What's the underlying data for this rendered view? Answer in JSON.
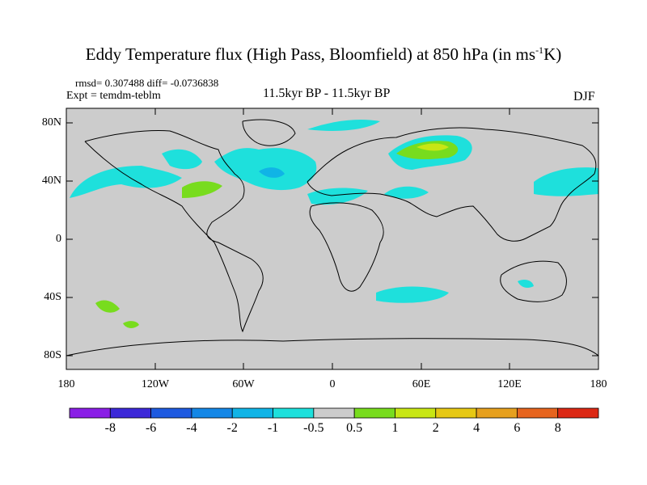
{
  "title": {
    "main": "Eddy Temperature flux (High Pass, Bloomfield) at 850 hPa (in ms",
    "superscript": "-1",
    "end": "K)"
  },
  "stats": "rmsd= 0.307488 diff= -0.0736838",
  "experiment": "Expt = temdm-teblm",
  "period": "11.5kyr BP - 11.5kyr BP",
  "season": "DJF",
  "axes": {
    "lat_labels": [
      "80N",
      "40N",
      "0",
      "40S",
      "80S"
    ],
    "lat_values": [
      80,
      40,
      0,
      -40,
      -80
    ],
    "lon_labels": [
      "180",
      "120W",
      "60W",
      "0",
      "60E",
      "120E",
      "180"
    ],
    "lon_values": [
      -180,
      -120,
      -60,
      0,
      60,
      120,
      180
    ],
    "lat_range": [
      -90,
      90
    ],
    "lon_range": [
      -180,
      180
    ]
  },
  "colorbar": {
    "labels": [
      "-8",
      "-6",
      "-4",
      "-2",
      "-1",
      "-0.5",
      "0.5",
      "1",
      "2",
      "4",
      "6",
      "8"
    ],
    "colors": [
      "#8a1ee6",
      "#3c28d8",
      "#1e5ae0",
      "#1487e6",
      "#10b4e6",
      "#1ee0dc",
      "#cccccc",
      "#78dc1e",
      "#c8e614",
      "#e6c814",
      "#e6a01e",
      "#e6641e",
      "#dc2814"
    ]
  },
  "colors": {
    "land_sea_background": "#cccccc",
    "coastline": "#000000"
  }
}
